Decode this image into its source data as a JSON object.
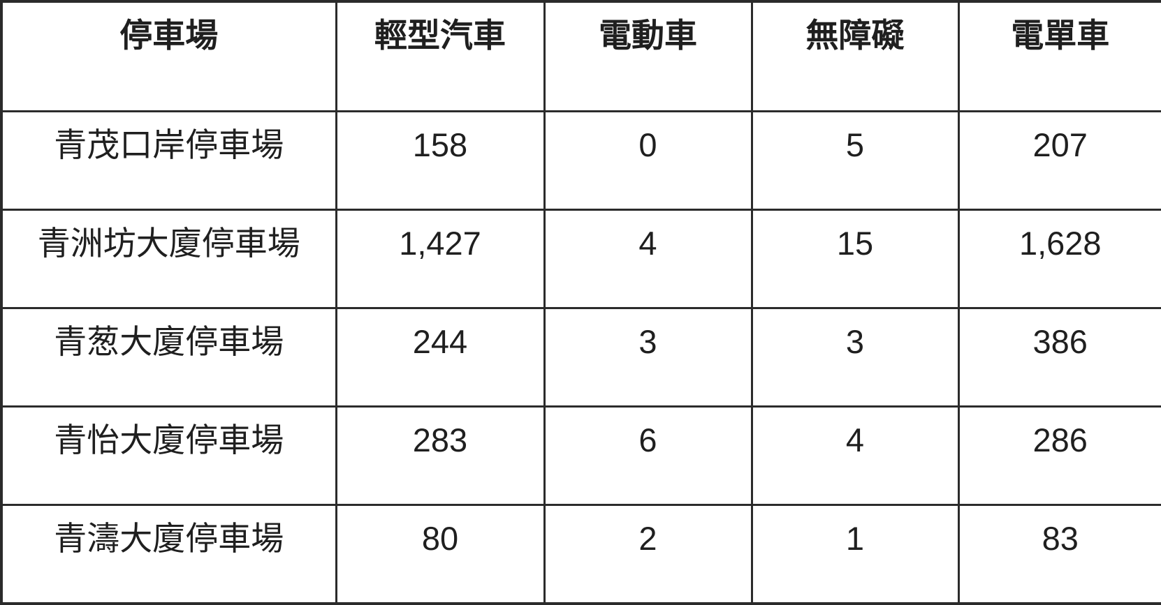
{
  "chart_data": {
    "type": "table",
    "columns": [
      "停車場",
      "輕型汽車",
      "電動車",
      "無障礙",
      "電單車"
    ],
    "rows": [
      [
        "青茂口岸停車場",
        "158",
        "0",
        "5",
        "207"
      ],
      [
        "青洲坊大廈停車場",
        "1,427",
        "4",
        "15",
        "1,628"
      ],
      [
        "青葱大廈停車場",
        "244",
        "3",
        "3",
        "386"
      ],
      [
        "青怡大廈停車場",
        "283",
        "6",
        "4",
        "286"
      ],
      [
        "青濤大廈停車場",
        "80",
        "2",
        "1",
        "83"
      ]
    ]
  },
  "colors": {
    "border": "#2b2b2b",
    "text": "#1f1f1f",
    "background": "#ffffff"
  }
}
